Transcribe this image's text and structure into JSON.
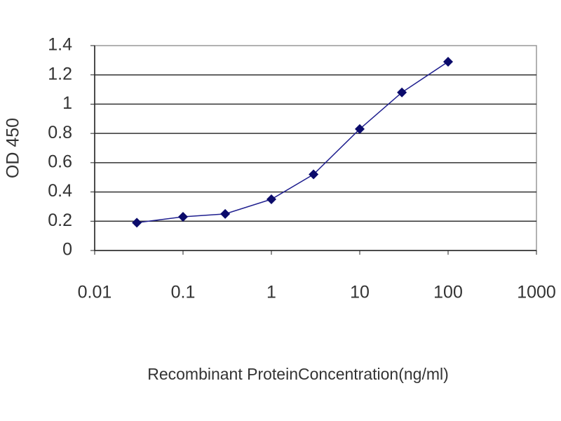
{
  "chart_data": {
    "type": "line",
    "y_label": "OD 450",
    "x_label": "Recombinant ProteinConcentration(ng/ml)",
    "x": [
      0.03,
      0.1,
      0.3,
      1,
      3,
      10,
      30,
      100
    ],
    "values": [
      0.19,
      0.23,
      0.25,
      0.35,
      0.52,
      0.83,
      1.08,
      1.29
    ],
    "color": "#1f1f8f",
    "marker_color": "#0b0b6b",
    "xscale": "log",
    "xlim": [
      0.01,
      1000
    ],
    "xticks": [
      0.01,
      0.1,
      1,
      10,
      100,
      1000
    ],
    "ylim": [
      0,
      1.4
    ],
    "yticks": [
      0,
      0.2,
      0.4,
      0.6,
      0.8,
      1,
      1.2,
      1.4
    ],
    "grid": true
  }
}
